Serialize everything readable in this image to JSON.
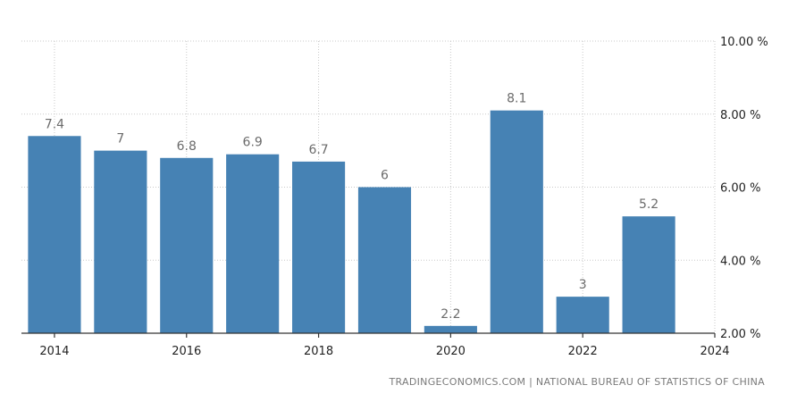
{
  "chart_data": {
    "type": "bar",
    "categories": [
      "2014",
      "2015",
      "2016",
      "2017",
      "2018",
      "2019",
      "2020",
      "2021",
      "2022",
      "2023"
    ],
    "values": [
      7.4,
      7,
      6.8,
      6.9,
      6.7,
      6,
      2.2,
      8.1,
      3,
      5.2
    ],
    "data_labels": [
      "7.4",
      "7",
      "6.8",
      "6.9",
      "6.7",
      "6",
      "2.2",
      "8.1",
      "3",
      "5.2"
    ],
    "x_tick_labels": [
      "2014",
      "2016",
      "2018",
      "2020",
      "2022",
      "2024"
    ],
    "x_ticks": [
      2014,
      2016,
      2018,
      2020,
      2022,
      2024
    ],
    "y_tick_labels": [
      "2.00 %",
      "4.00 %",
      "6.00 %",
      "8.00 %",
      "10.00 %"
    ],
    "y_ticks": [
      2,
      4,
      6,
      8,
      10
    ],
    "ylim": [
      2,
      10
    ],
    "xlim": [
      2013.5,
      2024
    ],
    "y_axis_position": "right",
    "grid": true,
    "bar_color": "#4682b4",
    "title": "",
    "xlabel": "",
    "ylabel": ""
  },
  "source_text": "TRADINGECONOMICS.COM | NATIONAL BUREAU OF STATISTICS OF CHINA"
}
